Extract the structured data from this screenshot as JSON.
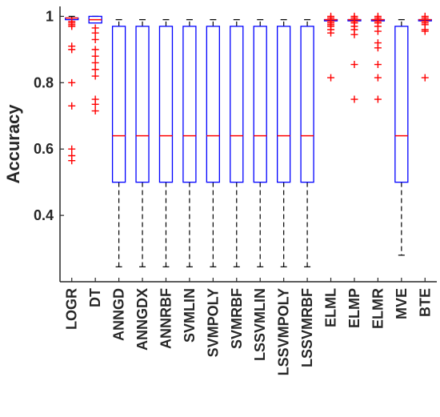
{
  "chart_data": {
    "type": "boxplot",
    "title": "",
    "xlabel": "",
    "ylabel": "Accuracy",
    "ylim": [
      0.2,
      1.03
    ],
    "yticks": [
      0.4,
      0.6,
      0.8,
      1
    ],
    "ytick_labels": [
      "0.4",
      "0.6",
      "0.8",
      "1"
    ],
    "categories": [
      "LOGR",
      "DT",
      "ANNGD",
      "ANNGDX",
      "ANNRBF",
      "SVMLIN",
      "SVMPOLY",
      "SVMRBF",
      "LSSVMLIN",
      "LSSVMPOLY",
      "LSSVMRBF",
      "ELML",
      "ELMP",
      "ELMR",
      "MVE",
      "BTE"
    ],
    "boxes": [
      {
        "whisker_low": 0.99,
        "q1": 0.99,
        "median": 0.995,
        "q3": 0.995,
        "whisker_high": 1.0,
        "outliers": [
          0.985,
          0.98,
          0.975,
          0.97,
          0.91,
          0.9,
          0.8,
          0.73,
          0.6,
          0.58,
          0.565
        ]
      },
      {
        "whisker_low": 0.98,
        "q1": 0.98,
        "median": 0.99,
        "q3": 1.0,
        "whisker_high": 1.0,
        "outliers": [
          0.965,
          0.95,
          0.93,
          0.9,
          0.88,
          0.86,
          0.84,
          0.82,
          0.75,
          0.735,
          0.715
        ]
      },
      {
        "whisker_low": 0.245,
        "q1": 0.5,
        "median": 0.64,
        "q3": 0.97,
        "whisker_high": 0.99,
        "outliers": []
      },
      {
        "whisker_low": 0.245,
        "q1": 0.5,
        "median": 0.64,
        "q3": 0.97,
        "whisker_high": 0.99,
        "outliers": []
      },
      {
        "whisker_low": 0.245,
        "q1": 0.5,
        "median": 0.64,
        "q3": 0.97,
        "whisker_high": 0.99,
        "outliers": []
      },
      {
        "whisker_low": 0.245,
        "q1": 0.5,
        "median": 0.64,
        "q3": 0.97,
        "whisker_high": 0.99,
        "outliers": []
      },
      {
        "whisker_low": 0.245,
        "q1": 0.5,
        "median": 0.64,
        "q3": 0.97,
        "whisker_high": 0.99,
        "outliers": []
      },
      {
        "whisker_low": 0.245,
        "q1": 0.5,
        "median": 0.64,
        "q3": 0.97,
        "whisker_high": 0.99,
        "outliers": []
      },
      {
        "whisker_low": 0.245,
        "q1": 0.5,
        "median": 0.64,
        "q3": 0.97,
        "whisker_high": 0.99,
        "outliers": []
      },
      {
        "whisker_low": 0.245,
        "q1": 0.5,
        "median": 0.64,
        "q3": 0.97,
        "whisker_high": 0.99,
        "outliers": []
      },
      {
        "whisker_low": 0.245,
        "q1": 0.5,
        "median": 0.64,
        "q3": 0.97,
        "whisker_high": 0.99,
        "outliers": []
      },
      {
        "whisker_low": 0.99,
        "q1": 0.99,
        "median": 0.99,
        "q3": 0.99,
        "whisker_high": 0.99,
        "outliers": [
          1.0,
          0.995,
          0.985,
          0.98,
          0.975,
          0.97,
          0.96,
          0.95,
          0.815
        ]
      },
      {
        "whisker_low": 0.99,
        "q1": 0.99,
        "median": 0.99,
        "q3": 0.99,
        "whisker_high": 0.99,
        "outliers": [
          1.0,
          0.995,
          0.985,
          0.98,
          0.97,
          0.96,
          0.945,
          0.855,
          0.75
        ]
      },
      {
        "whisker_low": 0.99,
        "q1": 0.99,
        "median": 0.99,
        "q3": 0.99,
        "whisker_high": 0.99,
        "outliers": [
          1.0,
          0.995,
          0.985,
          0.98,
          0.97,
          0.955,
          0.92,
          0.905,
          0.855,
          0.815,
          0.75
        ]
      },
      {
        "whisker_low": 0.28,
        "q1": 0.5,
        "median": 0.64,
        "q3": 0.97,
        "whisker_high": 0.99,
        "outliers": []
      },
      {
        "whisker_low": 0.99,
        "q1": 0.99,
        "median": 0.99,
        "q3": 0.99,
        "whisker_high": 0.99,
        "outliers": [
          1.0,
          0.995,
          0.985,
          0.98,
          0.975,
          0.96,
          0.955,
          0.815
        ]
      }
    ],
    "grid": false,
    "legend": "none",
    "colors": {
      "box": "#0000ff",
      "median": "#ff0000",
      "whisker": "#000000",
      "outlier": "#ff0000",
      "axis": "#262626"
    }
  }
}
